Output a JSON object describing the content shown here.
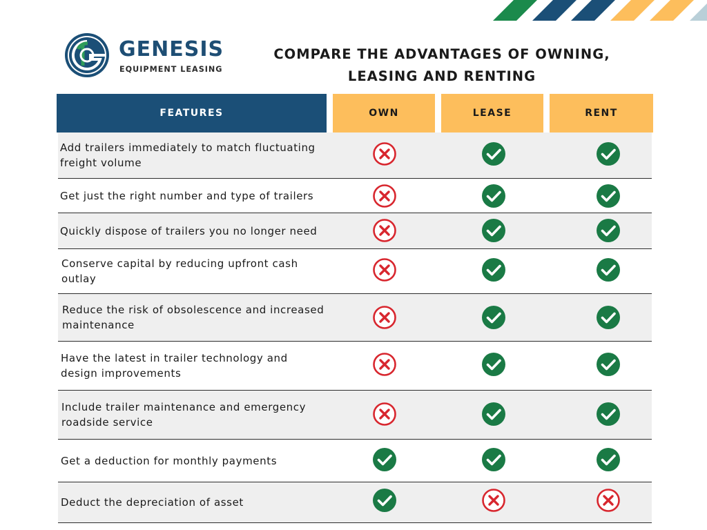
{
  "brand": {
    "name": "GENESIS",
    "subtitle": "EQUIPMENT LEASING",
    "primary_color": "#1b4f77",
    "accent_color": "#fdbe5c",
    "logo_green": "#1e7a45"
  },
  "title": "COMPARE THE ADVANTAGES OF OWNING, LEASING AND RENTING",
  "table": {
    "headers": [
      "FEATURES",
      "OWN",
      "LEASE",
      "RENT"
    ],
    "rows": [
      {
        "feature": "Add trailers immediately to match fluctuating freight volume",
        "own": "cross",
        "lease": "check",
        "rent": "check"
      },
      {
        "feature": "Get just the right number and type of trailers",
        "own": "cross",
        "lease": "check",
        "rent": "check"
      },
      {
        "feature": "Quickly dispose of trailers you no longer need",
        "own": "cross",
        "lease": "check",
        "rent": "check"
      },
      {
        "feature": "Conserve capital by reducing upfront cash outlay",
        "own": "cross",
        "lease": "check",
        "rent": "check"
      },
      {
        "feature": "Reduce the risk of obsolescence and increased maintenance",
        "own": "cross",
        "lease": "check",
        "rent": "check"
      },
      {
        "feature": "Have the latest in trailer technology and design improvements",
        "own": "cross",
        "lease": "check",
        "rent": "check"
      },
      {
        "feature": "Include trailer maintenance and emergency roadside service",
        "own": "cross",
        "lease": "check",
        "rent": "check"
      },
      {
        "feature": "Get a deduction for monthly payments",
        "own": "check",
        "lease": "check",
        "rent": "check"
      },
      {
        "feature": "Deduct the depreciation of asset",
        "own": "check",
        "lease": "cross",
        "rent": "cross"
      }
    ],
    "check_icon": "check-circle-icon",
    "cross_icon": "cross-circle-icon",
    "check_color": "#1a7a45",
    "cross_color": "#d8262e"
  },
  "decor": {
    "stripe_colors": [
      "#1b8a4c",
      "#1b4f77",
      "#1b4f77",
      "#fdbe5c",
      "#fdbe5c",
      "#b9cfd8"
    ]
  }
}
